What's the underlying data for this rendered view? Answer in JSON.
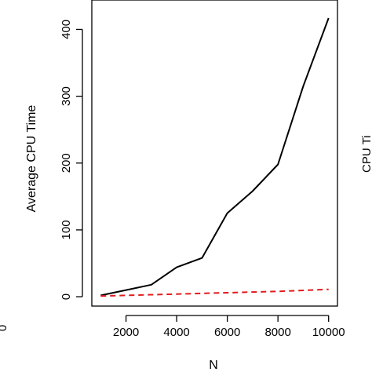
{
  "chart_data": {
    "type": "line",
    "xlabel": "N",
    "ylabel": "Average CPU Time",
    "x": [
      1000,
      2000,
      3000,
      4000,
      5000,
      6000,
      7000,
      8000,
      9000,
      10000
    ],
    "series": [
      {
        "values": [
          2,
          10,
          18,
          44,
          58,
          125,
          158,
          198,
          315,
          417
        ],
        "color": "#000000",
        "dash": "solid"
      },
      {
        "values": [
          1,
          2,
          3,
          4,
          5,
          6,
          7,
          8,
          9.5,
          11
        ],
        "color": "#e41a1c",
        "dash": "dashed"
      }
    ],
    "xlim": [
      650,
      10350
    ],
    "ylim": [
      -14,
      444
    ],
    "xticks": [
      2000,
      4000,
      6000,
      8000,
      10000
    ],
    "yticks": [
      0,
      100,
      200,
      300,
      400
    ],
    "grid": false,
    "legend": "none"
  },
  "clipped_fragments": {
    "right_edge_label": "CPU Ti",
    "left_edge_char": "0"
  }
}
